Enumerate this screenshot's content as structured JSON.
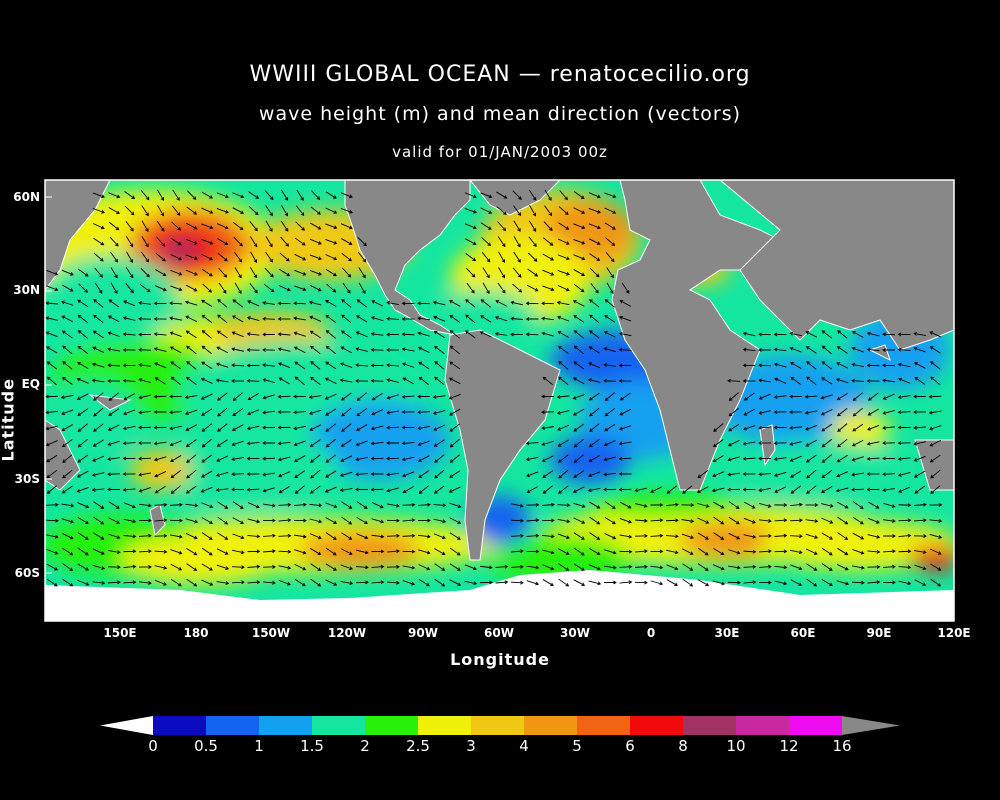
{
  "header": {
    "title": "WWIII GLOBAL OCEAN — renatocecilio.org",
    "subtitle": "wave height (m) and mean direction (vectors)",
    "valid": "valid for 01/JAN/2003 00z"
  },
  "axes": {
    "xlabel": "Longitude",
    "ylabel": "Latitude",
    "lat_ticks": [
      "60N",
      "30N",
      "EQ",
      "30S",
      "60S"
    ],
    "lon_ticks": [
      "150E",
      "180",
      "150W",
      "120W",
      "90W",
      "60W",
      "30W",
      "0",
      "30E",
      "60E",
      "90E",
      "120E"
    ]
  },
  "colorbar": {
    "levels": [
      "0",
      "0.5",
      "1",
      "1.5",
      "2",
      "2.5",
      "3",
      "4",
      "5",
      "6",
      "8",
      "10",
      "12",
      "16"
    ],
    "colors": [
      "#0b0bbf",
      "#1464f0",
      "#14a0f0",
      "#14e6a0",
      "#28f00a",
      "#f0f00a",
      "#f0c814",
      "#f09614",
      "#f06414",
      "#f00a0a",
      "#a03264",
      "#c828a0",
      "#f00af0"
    ],
    "under_color": "#ffffff",
    "over_color": "#888888"
  },
  "map": {
    "land_color": "#888888",
    "ice_color": "#ffffff",
    "coast_color": "#ffffff",
    "arrow_color": "#000000"
  }
}
